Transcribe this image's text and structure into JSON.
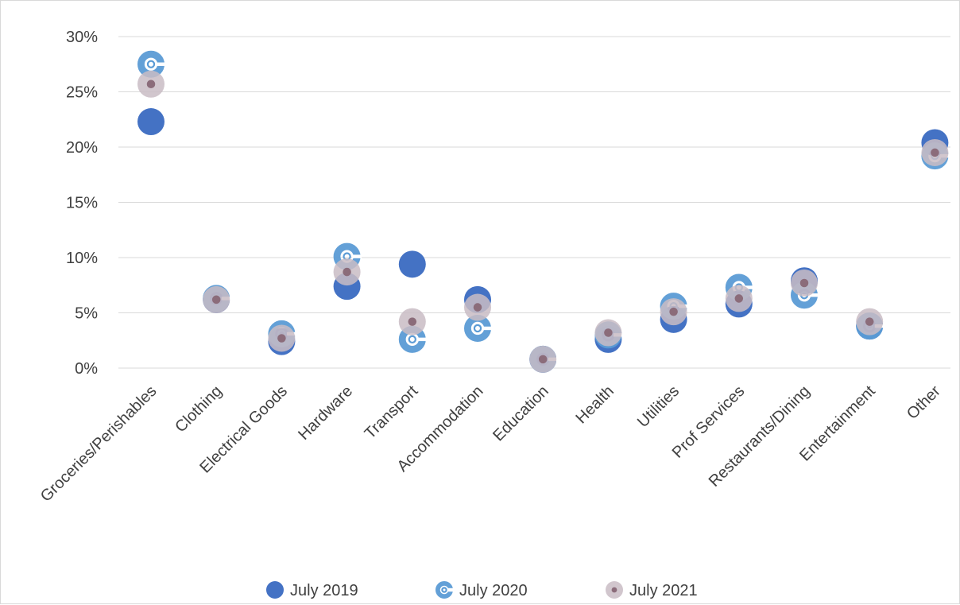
{
  "chart_data": {
    "type": "scatter",
    "categories": [
      "Groceries/Perishables",
      "Clothing",
      "Electrical Goods",
      "Hardware",
      "Transport",
      "Accommodation",
      "Education",
      "Health",
      "Utilities",
      "Prof Services",
      "Restaurants/Dining",
      "Entertainment",
      "Other"
    ],
    "y_ticks": [
      "0%",
      "5%",
      "10%",
      "15%",
      "20%",
      "25%",
      "30%"
    ],
    "ylim": [
      0,
      30
    ],
    "y_unit": "%",
    "grid": true,
    "legend_position": "bottom",
    "series": [
      {
        "name": "July 2019",
        "marker": "filled-circle",
        "color": "#4472c4",
        "values": [
          22.3,
          6.2,
          2.4,
          7.4,
          9.4,
          6.2,
          0.8,
          2.6,
          4.4,
          5.8,
          7.9,
          3.8,
          20.4
        ]
      },
      {
        "name": "July 2020",
        "marker": "ring",
        "color": "#5b9bd5",
        "values": [
          27.5,
          6.3,
          3.1,
          10.1,
          2.6,
          3.6,
          0.8,
          3.0,
          5.6,
          7.3,
          6.6,
          3.8,
          19.2
        ]
      },
      {
        "name": "July 2021",
        "marker": "dotted-circle",
        "color": "#c9bcc4",
        "dot_color": "#8b6c7a",
        "values": [
          25.7,
          6.2,
          2.7,
          8.7,
          4.2,
          5.5,
          0.8,
          3.2,
          5.1,
          6.3,
          7.7,
          4.2,
          19.5
        ]
      }
    ]
  }
}
